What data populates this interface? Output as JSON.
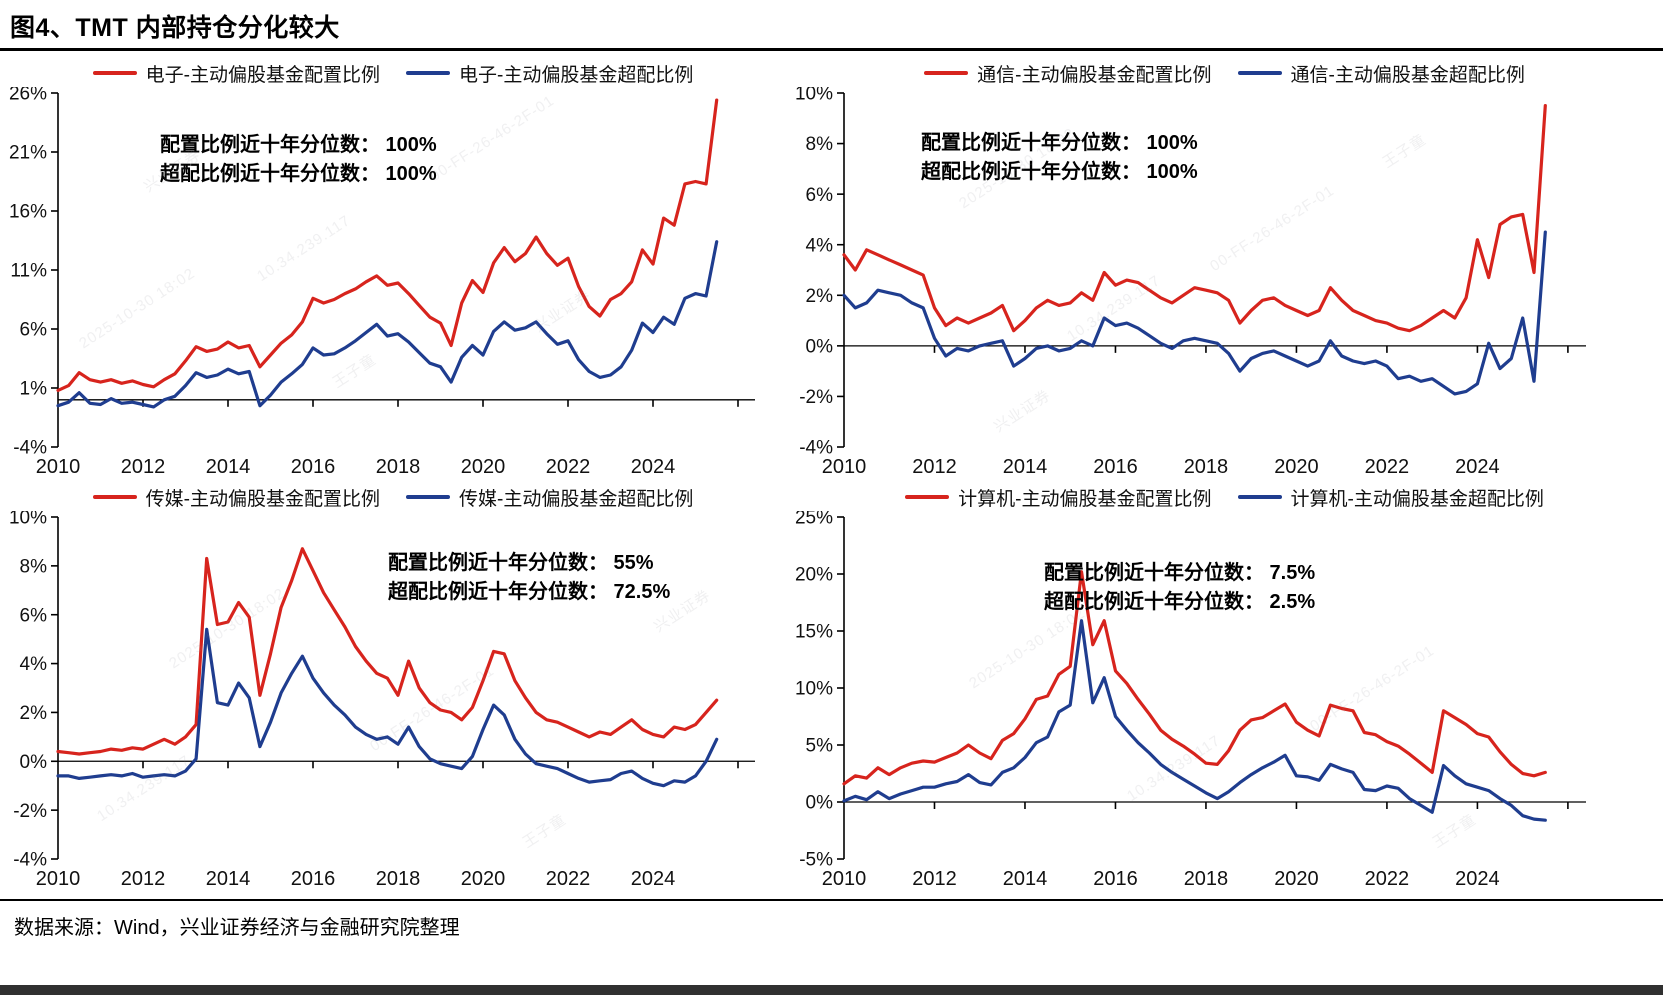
{
  "page": {
    "title": "图4、TMT 内部持仓分化较大",
    "source_note": "数据来源：Wind，兴业证券经济与金融研究院整理"
  },
  "colors": {
    "allocation": "#d7241d",
    "overweight": "#1f3d8f",
    "axis": "#000000"
  },
  "watermarks": {
    "texts": [
      "兴业证券",
      "2025-10-30 18:02",
      "10.34.239.117",
      "00-FF-26-46-2F-01",
      "王子童"
    ]
  },
  "chart_data": [
    {
      "type": "line",
      "sector": "电子",
      "legend": [
        "电子-主动偏股基金配置比例",
        "电子-主动偏股基金超配比例"
      ],
      "annotation": [
        "配置比例近十年分位数： 100%",
        "超配比例近十年分位数： 100%"
      ],
      "percentiles": {
        "allocation": "100%",
        "overweight": "100%"
      },
      "x_start": 2010,
      "x_step_years": 0.25,
      "x_end_axis": 2026.4,
      "x_tick_labels": [
        "2010",
        "2012",
        "2014",
        "2016",
        "2018",
        "2020",
        "2022",
        "2024"
      ],
      "ylim": [
        -4,
        26
      ],
      "yticks": [
        -4,
        1,
        6,
        11,
        16,
        21,
        26
      ],
      "grid": false,
      "legend_position": "top-center",
      "ann_pos": [
        160,
        44
      ],
      "series": [
        {
          "name": "电子-主动偏股基金配置比例",
          "color_key": "allocation",
          "values": [
            0.8,
            1.2,
            2.3,
            1.7,
            1.5,
            1.7,
            1.4,
            1.6,
            1.3,
            1.1,
            1.7,
            2.2,
            3.3,
            4.5,
            4.1,
            4.3,
            4.9,
            4.4,
            4.6,
            2.8,
            3.8,
            4.8,
            5.5,
            6.6,
            8.6,
            8.2,
            8.5,
            9.0,
            9.4,
            10.0,
            10.5,
            9.7,
            9.9,
            9.0,
            8.0,
            7.0,
            6.5,
            4.6,
            8.2,
            10.1,
            9.1,
            11.6,
            12.9,
            11.7,
            12.4,
            13.8,
            12.4,
            11.4,
            12.0,
            9.6,
            7.9,
            7.1,
            8.5,
            9.0,
            10.0,
            12.7,
            11.5,
            15.4,
            14.8,
            18.3,
            18.5,
            18.3,
            25.4
          ]
        },
        {
          "name": "电子-主动偏股基金超配比例",
          "color_key": "overweight",
          "values": [
            -0.5,
            -0.2,
            0.6,
            -0.3,
            -0.4,
            0.1,
            -0.3,
            -0.2,
            -0.4,
            -0.6,
            0.0,
            0.3,
            1.2,
            2.3,
            1.9,
            2.1,
            2.6,
            2.2,
            2.4,
            -0.5,
            0.4,
            1.5,
            2.2,
            3.0,
            4.4,
            3.8,
            3.9,
            4.4,
            5.0,
            5.7,
            6.4,
            5.4,
            5.6,
            4.9,
            4.0,
            3.1,
            2.8,
            1.5,
            3.6,
            4.6,
            3.8,
            5.8,
            6.6,
            5.9,
            6.1,
            6.6,
            5.6,
            4.7,
            5.0,
            3.4,
            2.4,
            1.9,
            2.1,
            2.8,
            4.2,
            6.5,
            5.7,
            7.0,
            6.4,
            8.6,
            9.0,
            8.8,
            13.4
          ]
        }
      ]
    },
    {
      "type": "line",
      "sector": "通信",
      "legend": [
        "通信-主动偏股基金配置比例",
        "通信-主动偏股基金超配比例"
      ],
      "annotation": [
        "配置比例近十年分位数： 100%",
        "超配比例近十年分位数： 100%"
      ],
      "percentiles": {
        "allocation": "100%",
        "overweight": "100%"
      },
      "x_start": 2010,
      "x_step_years": 0.25,
      "x_end_axis": 2026.4,
      "x_tick_labels": [
        "2010",
        "2012",
        "2014",
        "2016",
        "2018",
        "2020",
        "2022",
        "2024"
      ],
      "ylim": [
        -4,
        10
      ],
      "yticks": [
        -4,
        -2,
        0,
        2,
        4,
        6,
        8,
        10
      ],
      "grid": false,
      "legend_position": "top-center",
      "ann_pos": [
        135,
        42
      ],
      "series": [
        {
          "name": "通信-主动偏股基金配置比例",
          "color_key": "allocation",
          "values": [
            3.6,
            3.0,
            3.8,
            3.6,
            3.4,
            3.2,
            3.0,
            2.8,
            1.5,
            0.8,
            1.1,
            0.9,
            1.1,
            1.3,
            1.6,
            0.6,
            1.0,
            1.5,
            1.8,
            1.6,
            1.7,
            2.1,
            1.8,
            2.9,
            2.4,
            2.6,
            2.5,
            2.2,
            1.9,
            1.7,
            2.0,
            2.3,
            2.2,
            2.1,
            1.8,
            0.9,
            1.4,
            1.8,
            1.9,
            1.6,
            1.4,
            1.2,
            1.4,
            2.3,
            1.8,
            1.4,
            1.2,
            1.0,
            0.9,
            0.7,
            0.6,
            0.8,
            1.1,
            1.4,
            1.1,
            1.9,
            4.2,
            2.7,
            4.8,
            5.1,
            5.2,
            2.9,
            9.5
          ]
        },
        {
          "name": "通信-主动偏股基金超配比例",
          "color_key": "overweight",
          "values": [
            2.0,
            1.5,
            1.7,
            2.2,
            2.1,
            2.0,
            1.7,
            1.5,
            0.3,
            -0.4,
            -0.1,
            -0.2,
            0.0,
            0.1,
            0.2,
            -0.8,
            -0.5,
            -0.1,
            0.0,
            -0.2,
            -0.1,
            0.2,
            0.0,
            1.1,
            0.8,
            0.9,
            0.7,
            0.4,
            0.1,
            -0.1,
            0.2,
            0.3,
            0.2,
            0.1,
            -0.3,
            -1.0,
            -0.5,
            -0.3,
            -0.2,
            -0.4,
            -0.6,
            -0.8,
            -0.6,
            0.2,
            -0.4,
            -0.6,
            -0.7,
            -0.6,
            -0.8,
            -1.3,
            -1.2,
            -1.4,
            -1.3,
            -1.6,
            -1.9,
            -1.8,
            -1.5,
            0.1,
            -0.9,
            -0.5,
            1.1,
            -1.4,
            4.5
          ]
        }
      ]
    },
    {
      "type": "line",
      "sector": "传媒",
      "legend": [
        "传媒-主动偏股基金配置比例",
        "传媒-主动偏股基金超配比例"
      ],
      "annotation": [
        "配置比例近十年分位数： 55%",
        "超配比例近十年分位数： 72.5%"
      ],
      "percentiles": {
        "allocation": "55%",
        "overweight": "72.5%"
      },
      "x_start": 2010,
      "x_step_years": 0.25,
      "x_end_axis": 2026.4,
      "x_tick_labels": [
        "2010",
        "2012",
        "2014",
        "2016",
        "2018",
        "2020",
        "2022",
        "2024"
      ],
      "ylim": [
        -4,
        10
      ],
      "yticks": [
        -4,
        -2,
        0,
        2,
        4,
        6,
        8,
        10
      ],
      "grid": false,
      "legend_position": "top-center",
      "ann_pos": [
        388,
        38
      ],
      "series": [
        {
          "name": "传媒-主动偏股基金配置比例",
          "color_key": "allocation",
          "values": [
            0.4,
            0.35,
            0.3,
            0.35,
            0.4,
            0.5,
            0.45,
            0.55,
            0.5,
            0.7,
            0.9,
            0.7,
            1.0,
            1.5,
            8.3,
            5.6,
            5.7,
            6.5,
            5.9,
            2.7,
            4.4,
            6.3,
            7.4,
            8.7,
            7.8,
            6.9,
            6.2,
            5.5,
            4.7,
            4.1,
            3.6,
            3.4,
            2.7,
            4.1,
            3.0,
            2.4,
            2.1,
            2.0,
            1.7,
            2.2,
            3.3,
            4.5,
            4.4,
            3.3,
            2.6,
            2.0,
            1.7,
            1.6,
            1.4,
            1.2,
            1.0,
            1.2,
            1.1,
            1.4,
            1.7,
            1.3,
            1.1,
            1.0,
            1.4,
            1.3,
            1.5,
            2.0,
            2.5
          ]
        },
        {
          "name": "传媒-主动偏股基金超配比例",
          "color_key": "overweight",
          "values": [
            -0.6,
            -0.6,
            -0.7,
            -0.65,
            -0.6,
            -0.55,
            -0.6,
            -0.5,
            -0.65,
            -0.6,
            -0.55,
            -0.6,
            -0.4,
            0.1,
            5.4,
            2.4,
            2.3,
            3.2,
            2.6,
            0.6,
            1.6,
            2.8,
            3.6,
            4.3,
            3.4,
            2.8,
            2.3,
            1.9,
            1.4,
            1.1,
            0.9,
            1.0,
            0.7,
            1.4,
            0.6,
            0.1,
            -0.1,
            -0.2,
            -0.3,
            0.2,
            1.3,
            2.3,
            1.9,
            0.9,
            0.3,
            -0.1,
            -0.2,
            -0.3,
            -0.5,
            -0.7,
            -0.85,
            -0.8,
            -0.75,
            -0.5,
            -0.4,
            -0.7,
            -0.9,
            -1.0,
            -0.8,
            -0.85,
            -0.6,
            0.0,
            0.9
          ]
        }
      ]
    },
    {
      "type": "line",
      "sector": "计算机",
      "legend": [
        "计算机-主动偏股基金配置比例",
        "计算机-主动偏股基金超配比例"
      ],
      "annotation": [
        "配置比例近十年分位数： 7.5%",
        "超配比例近十年分位数： 2.5%"
      ],
      "percentiles": {
        "allocation": "7.5%",
        "overweight": "2.5%"
      },
      "x_start": 2010,
      "x_step_years": 0.25,
      "x_end_axis": 2026.4,
      "x_tick_labels": [
        "2010",
        "2012",
        "2014",
        "2016",
        "2018",
        "2020",
        "2022",
        "2024"
      ],
      "ylim": [
        -5,
        25
      ],
      "yticks": [
        -5,
        0,
        5,
        10,
        15,
        20,
        25
      ],
      "grid": false,
      "legend_position": "top-center",
      "ann_pos": [
        258,
        48
      ],
      "series": [
        {
          "name": "计算机-主动偏股基金配置比例",
          "color_key": "allocation",
          "values": [
            1.6,
            2.3,
            2.1,
            3.0,
            2.4,
            3.0,
            3.4,
            3.6,
            3.5,
            3.9,
            4.3,
            5.0,
            4.3,
            3.8,
            5.4,
            6.0,
            7.3,
            9.0,
            9.3,
            11.2,
            11.9,
            20.2,
            13.8,
            15.9,
            11.5,
            10.4,
            9.0,
            7.7,
            6.3,
            5.5,
            4.9,
            4.2,
            3.4,
            3.3,
            4.5,
            6.3,
            7.2,
            7.4,
            8.0,
            8.6,
            7.0,
            6.3,
            5.8,
            8.5,
            8.2,
            8.0,
            6.1,
            5.9,
            5.3,
            4.9,
            4.2,
            3.4,
            2.6,
            8.0,
            7.4,
            6.8,
            6.0,
            5.7,
            4.4,
            3.3,
            2.5,
            2.3,
            2.6
          ]
        },
        {
          "name": "计算机-主动偏股基金超配比例",
          "color_key": "overweight",
          "values": [
            0.1,
            0.5,
            0.2,
            0.9,
            0.3,
            0.7,
            1.0,
            1.3,
            1.3,
            1.6,
            1.8,
            2.4,
            1.7,
            1.5,
            2.6,
            3.0,
            3.9,
            5.2,
            5.7,
            7.9,
            8.5,
            15.9,
            8.7,
            10.9,
            7.5,
            6.3,
            5.2,
            4.3,
            3.3,
            2.6,
            2.0,
            1.4,
            0.8,
            0.3,
            0.9,
            1.7,
            2.4,
            3.0,
            3.5,
            4.1,
            2.3,
            2.2,
            1.9,
            3.3,
            2.9,
            2.6,
            1.1,
            1.0,
            1.4,
            1.2,
            0.3,
            -0.3,
            -0.9,
            3.2,
            2.3,
            1.6,
            1.3,
            1.0,
            0.3,
            -0.3,
            -1.2,
            -1.5,
            -1.6
          ]
        }
      ]
    }
  ]
}
